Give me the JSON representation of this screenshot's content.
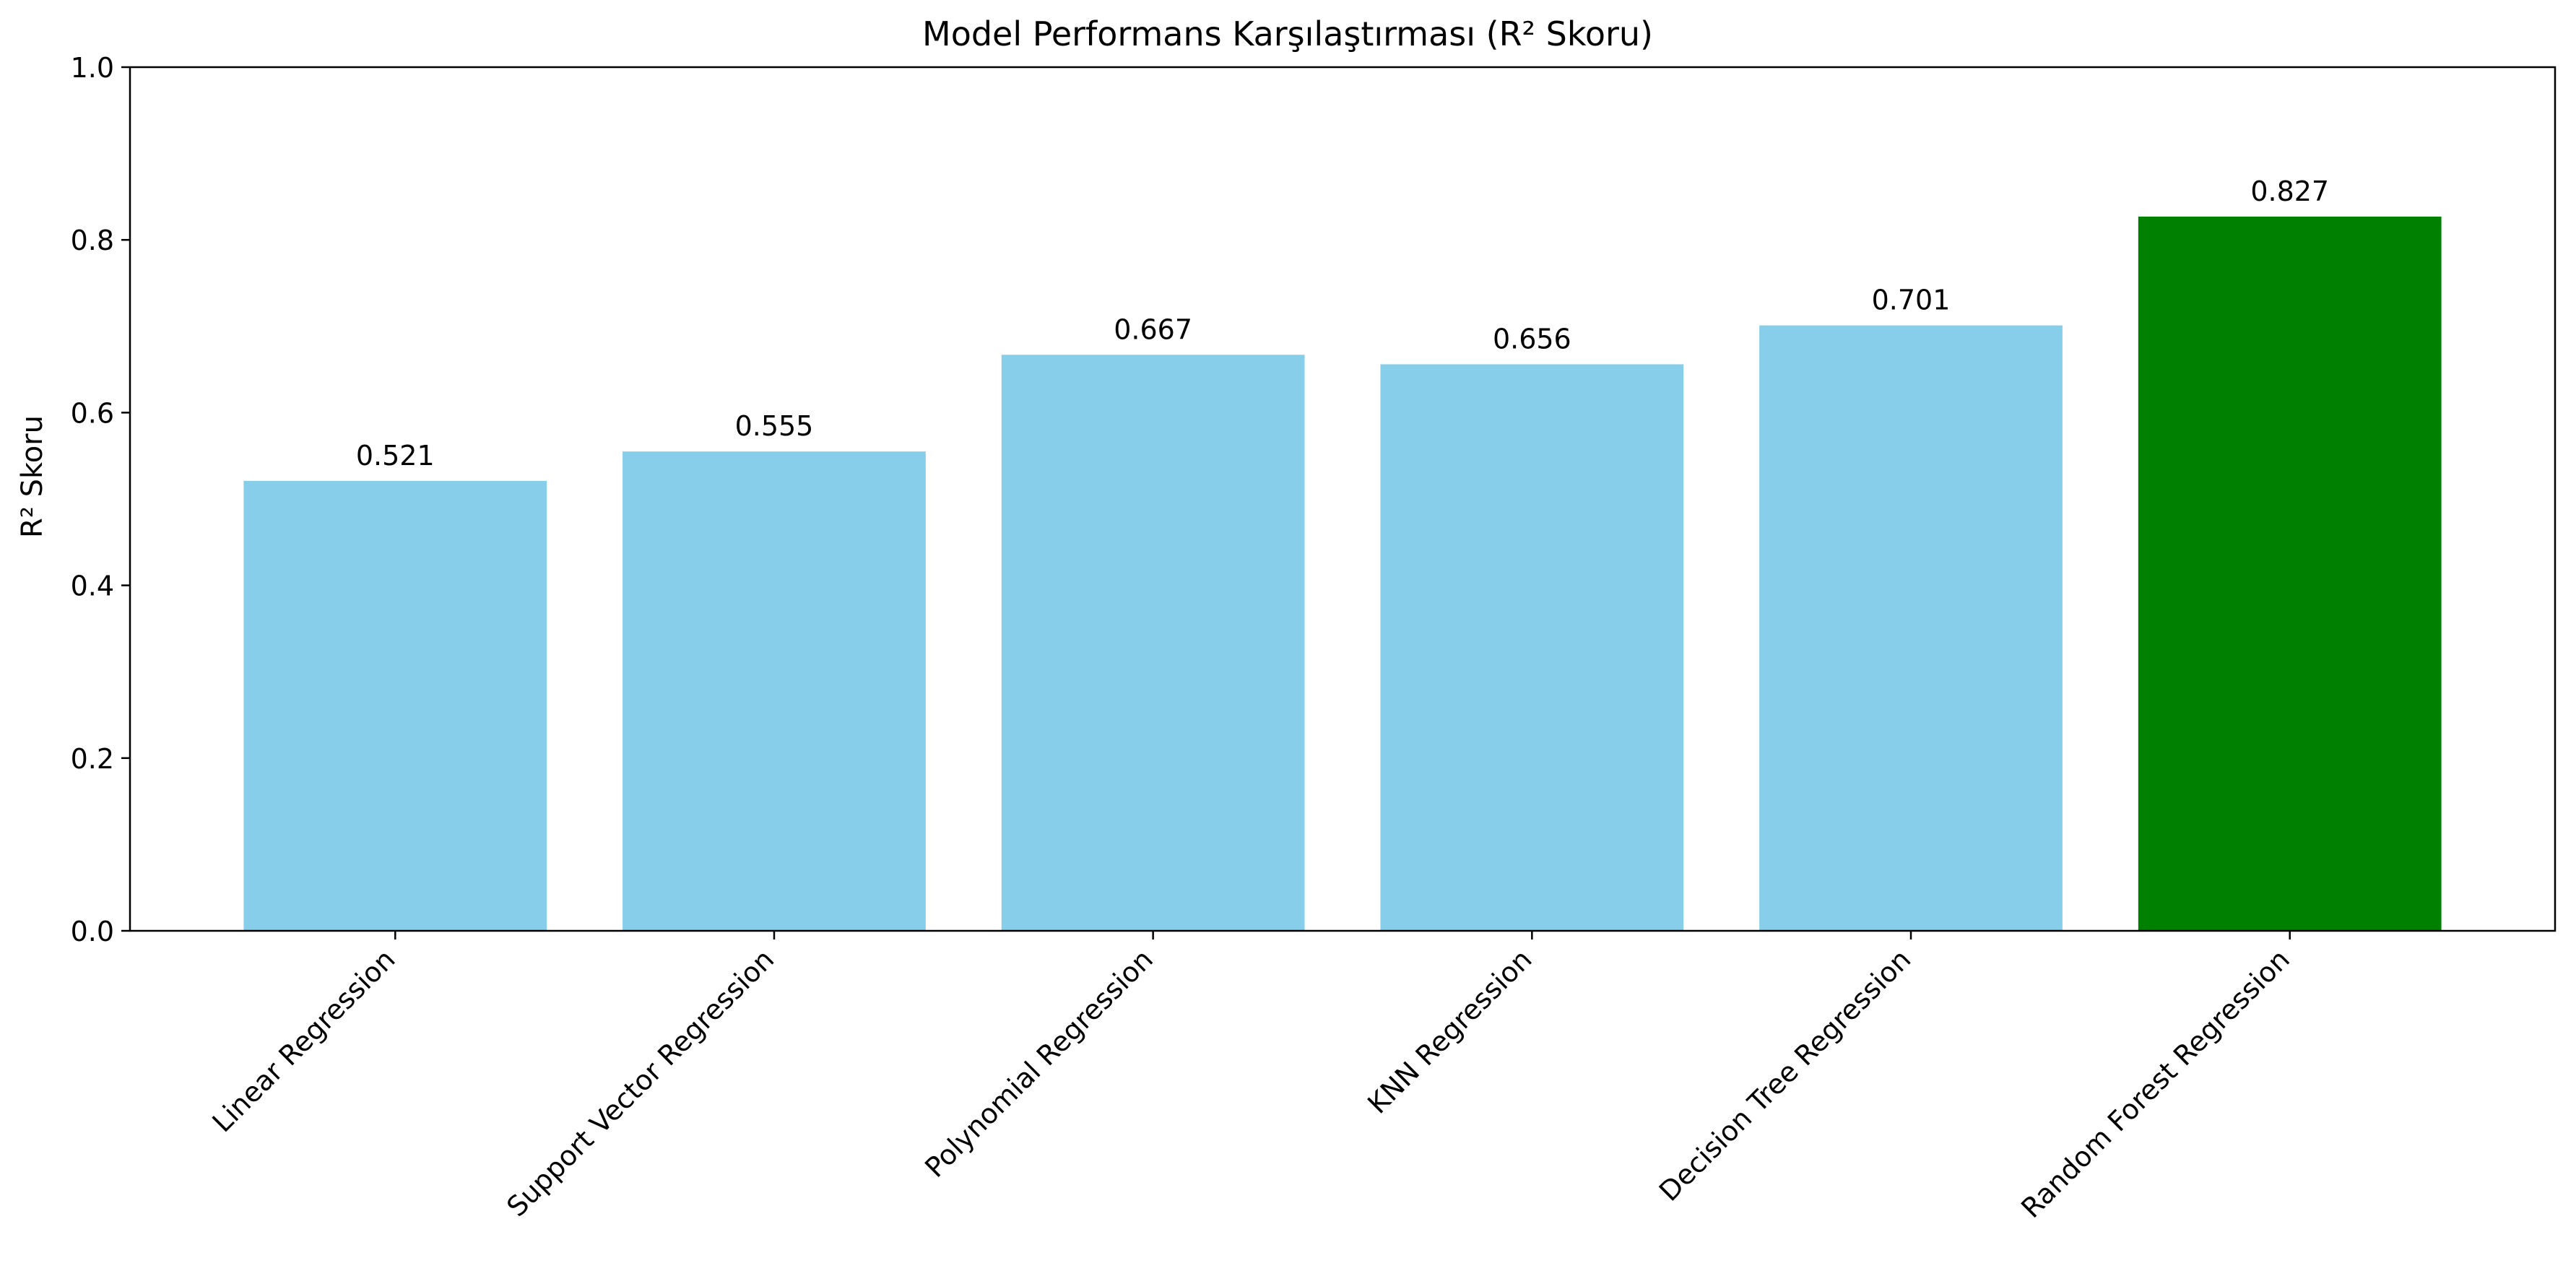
{
  "chart_data": {
    "type": "bar",
    "title": "Model Performans Karşılaştırması (R² Skoru)",
    "xlabel": "",
    "ylabel": "R² Skoru",
    "categories": [
      "Linear Regression",
      "Support Vector Regression",
      "Polynomial Regression",
      "KNN Regression",
      "Decision Tree Regression",
      "Random Forest Regression"
    ],
    "values": [
      0.521,
      0.555,
      0.667,
      0.656,
      0.701,
      0.827
    ],
    "value_labels": [
      "0.521",
      "0.555",
      "0.667",
      "0.656",
      "0.701",
      "0.827"
    ],
    "bar_colors": [
      "#87ceeb",
      "#87ceeb",
      "#87ceeb",
      "#87ceeb",
      "#87ceeb",
      "#008000"
    ],
    "ylim": [
      0,
      1.0
    ],
    "yticks": [
      "0.0",
      "0.2",
      "0.4",
      "0.6",
      "0.8",
      "1.0"
    ],
    "grid": false,
    "legend": "none"
  }
}
